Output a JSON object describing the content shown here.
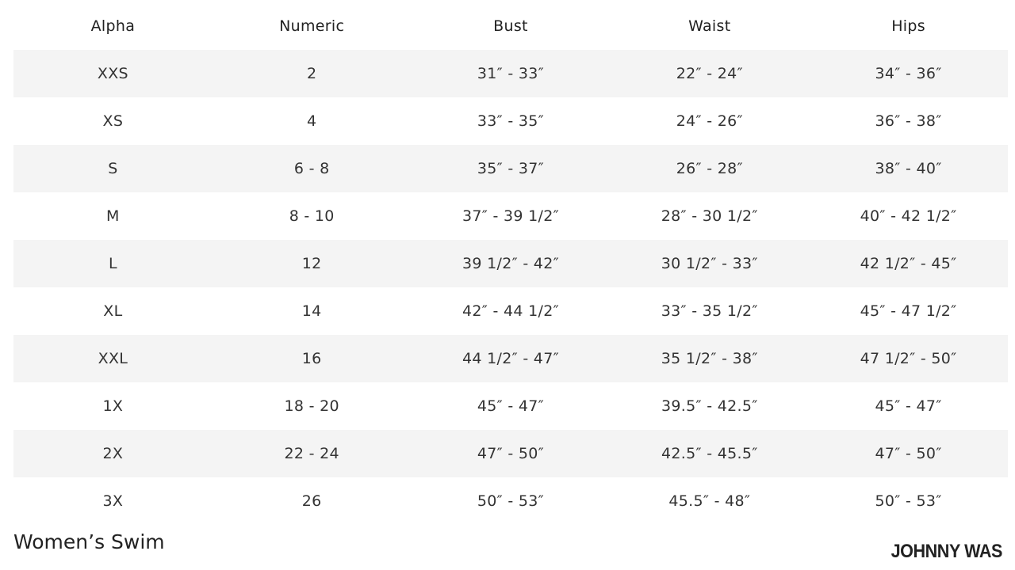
{
  "table": {
    "headers": [
      "Alpha",
      "Numeric",
      "Bust",
      "Waist",
      "Hips"
    ],
    "rows": [
      [
        "XXS",
        "2",
        "31″ - 33″",
        "22″ - 24″",
        "34″ - 36″"
      ],
      [
        "XS",
        "4",
        "33″ - 35″",
        "24″ - 26″",
        "36″ - 38″"
      ],
      [
        "S",
        "6 - 8",
        "35″ - 37″",
        "26″ - 28″",
        "38″ - 40″"
      ],
      [
        "M",
        "8 - 10",
        "37″ - 39 1/2″",
        "28″ - 30 1/2″",
        "40″ - 42 1/2″"
      ],
      [
        "L",
        "12",
        "39 1/2″ - 42″",
        "30 1/2″ - 33″",
        "42 1/2″ - 45″"
      ],
      [
        "XL",
        "14",
        "42″ - 44 1/2″",
        "33″ - 35 1/2″",
        "45″ - 47 1/2″"
      ],
      [
        "XXL",
        "16",
        "44 1/2″ - 47″",
        "35 1/2″ - 38″",
        "47 1/2″ - 50″"
      ],
      [
        "1X",
        "18 - 20",
        "45″ - 47″",
        "39.5″ - 42.5″",
        "45″ - 47″"
      ],
      [
        "2X",
        "22 - 24",
        "47″ - 50″",
        "42.5″ - 45.5″",
        "47″ - 50″"
      ],
      [
        "3X",
        "26",
        "50″ - 53″",
        "45.5″ - 48″",
        "50″ - 53″"
      ]
    ]
  },
  "footer": {
    "title": "Women’s Swim",
    "brand": "JOHNNY WAS"
  },
  "colors": {
    "stripe": "#f4f4f4",
    "text": "#333333"
  }
}
